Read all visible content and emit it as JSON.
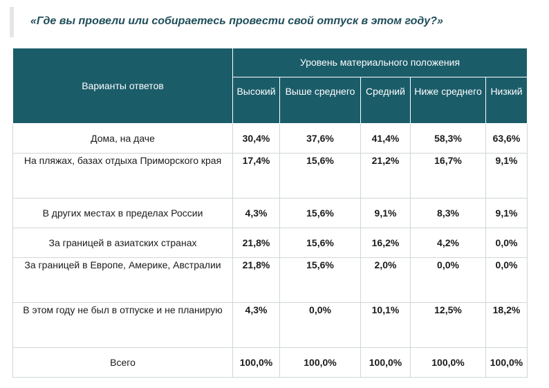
{
  "title": "«Где вы провели или собираетесь провести свой отпуск в этом году?»",
  "table": {
    "header_answers": "Варианты ответов",
    "header_group": "Уровень материального положения",
    "columns": [
      "Высокий",
      "Выше среднего",
      "Средний",
      "Ниже среднего",
      "Низкий"
    ],
    "rows": [
      {
        "label": "Дома, на даче",
        "values": [
          "30,4%",
          "37,6%",
          "41,4%",
          "58,3%",
          "63,6%"
        ]
      },
      {
        "label": "На пляжах, базах отдыха Приморского края",
        "values": [
          "17,4%",
          "15,6%",
          "21,2%",
          "16,7%",
          "9,1%"
        ]
      },
      {
        "label": "В других местах в пределах России",
        "values": [
          "4,3%",
          "15,6%",
          "9,1%",
          "8,3%",
          "9,1%"
        ]
      },
      {
        "label": "За границей в азиатских странах",
        "values": [
          "21,8%",
          "15,6%",
          "16,2%",
          "4,2%",
          "0,0%"
        ]
      },
      {
        "label": "За границей в Европе, Америке, Австралии",
        "values": [
          "21,8%",
          "15,6%",
          "2,0%",
          "0,0%",
          "0,0%"
        ]
      },
      {
        "label": "В этом году не был в отпуске и не планирую",
        "values": [
          "4,3%",
          "0,0%",
          "10,1%",
          "12,5%",
          "18,2%"
        ]
      },
      {
        "label": "Всего",
        "values": [
          "100,0%",
          "100,0%",
          "100,0%",
          "100,0%",
          "100,0%"
        ]
      }
    ]
  },
  "colors": {
    "header_bg": "#1b5c69",
    "title": "#1f4d5a",
    "border": "#cfd6d8"
  }
}
